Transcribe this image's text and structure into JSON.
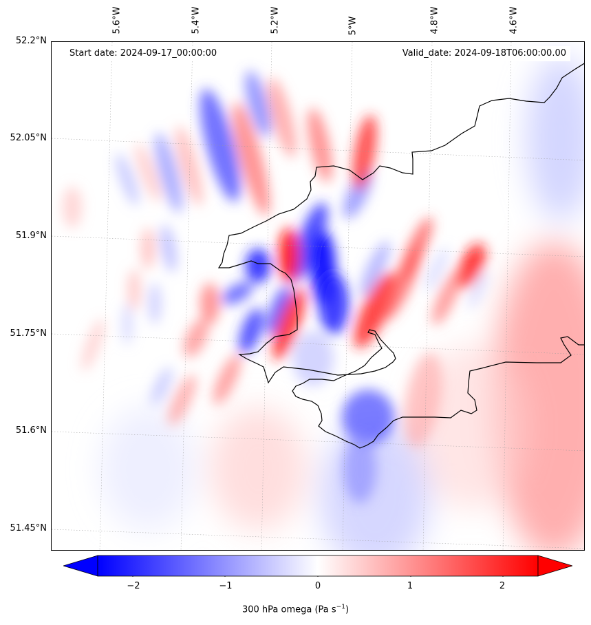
{
  "header": {
    "start_date": "Start date: 2024-09-17_00:00:00",
    "valid_date": "Valid_date: 2024-09-18T06:00:00.00"
  },
  "longitude_labels": [
    "5.6°W",
    "5.4°W",
    "5.2°W",
    "5°W",
    "4.8°W",
    "4.6°W"
  ],
  "latitude_labels": [
    "52.2°N",
    "52.05°N",
    "51.9°N",
    "51.75°N",
    "51.6°N",
    "51.45°N"
  ],
  "colorbar": {
    "ticks": [
      "−2",
      "−1",
      "0",
      "1",
      "2"
    ],
    "label_main": "300 hPa omega (Pa s",
    "label_exp": "−1",
    "label_close": ")",
    "range": [
      -2.6,
      2.6
    ],
    "extend": "both",
    "colormap": "bwr",
    "color_low": "#0000ff",
    "color_mid": "#ffffff",
    "color_high": "#ff0000"
  },
  "map": {
    "variable": "300 hPa omega",
    "region": "Pembrokeshire, south-west Wales",
    "gridlines": "dotted-grey",
    "coastline_color": "#000000"
  }
}
